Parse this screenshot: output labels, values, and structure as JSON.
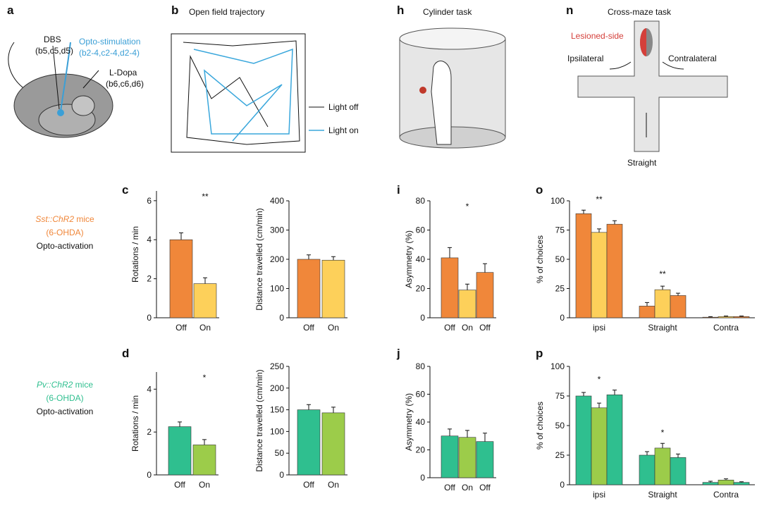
{
  "panels": {
    "a": {
      "label": "a",
      "dbs": "DBS",
      "dbs_sub": "(b5,c5,d5)",
      "opto": "Opto-stimulation",
      "opto_sub": "(b2-4,c2-4,d2-4)",
      "ldopa": "L-Dopa",
      "ldopa_sub": "(b6,c6,d6)"
    },
    "b": {
      "label": "b",
      "title": "Open field trajectory",
      "light_off": "Light off",
      "light_on": "Light on"
    },
    "h": {
      "label": "h",
      "title": "Cylinder task"
    },
    "n": {
      "label": "n",
      "title": "Cross-maze task",
      "lesioned": "Lesioned-side",
      "ipsi": "Ipsilateral",
      "contra": "Contralateral",
      "straight": "Straight"
    }
  },
  "rows": [
    {
      "line1_italic": "Sst::ChR2",
      "line1_rest": "mice",
      "line2": "(6-OHDA)",
      "line3": "Opto-activation",
      "color": "#f0873a"
    },
    {
      "line1_italic": "Pv::ChR2",
      "line1_rest": "mice",
      "line2": "(6-OHDA)",
      "line3": "Opto-activation",
      "color": "#2fbf8f"
    }
  ],
  "chart_data": [
    {
      "type": "bar",
      "label": "c",
      "ylabel": "Rotations / min",
      "categories": [
        "Off",
        "On"
      ],
      "values": [
        4.0,
        1.75
      ],
      "errors": [
        0.35,
        0.3
      ],
      "colors": [
        "#f0873a",
        "#fdd05a"
      ],
      "ylim": [
        0,
        6.5
      ],
      "yticks": [
        0,
        2,
        4,
        6
      ],
      "annotation": "**"
    },
    {
      "type": "bar",
      "ylabel": "Distance travelled (cm/min)",
      "categories": [
        "Off",
        "On"
      ],
      "values": [
        200,
        197
      ],
      "errors": [
        15,
        12
      ],
      "colors": [
        "#f0873a",
        "#fdd05a"
      ],
      "ylim": [
        0,
        400
      ],
      "yticks": [
        0,
        100,
        200,
        300,
        400
      ]
    },
    {
      "type": "bar",
      "label": "d",
      "ylabel": "Rotations / min",
      "categories": [
        "Off",
        "On"
      ],
      "values": [
        2.25,
        1.4
      ],
      "errors": [
        0.22,
        0.25
      ],
      "colors": [
        "#2fbf8f",
        "#9ccc4a"
      ],
      "ylim": [
        0,
        4.8
      ],
      "yticks": [
        0,
        2,
        4
      ],
      "annotation": "*"
    },
    {
      "type": "bar",
      "ylabel": "Distance travelled (cm/min)",
      "categories": [
        "Off",
        "On"
      ],
      "values": [
        150,
        143
      ],
      "errors": [
        12,
        13
      ],
      "colors": [
        "#2fbf8f",
        "#9ccc4a"
      ],
      "ylim": [
        0,
        250
      ],
      "yticks": [
        0,
        50,
        100,
        150,
        200,
        250
      ]
    },
    {
      "type": "bar",
      "label": "i",
      "ylabel": "Asymmetry (%)",
      "categories": [
        "Off",
        "On",
        "Off"
      ],
      "values": [
        41,
        19,
        31
      ],
      "errors": [
        7,
        4,
        6
      ],
      "colors": [
        "#f0873a",
        "#fdd05a",
        "#f0873a"
      ],
      "ylim": [
        0,
        80
      ],
      "yticks": [
        0,
        20,
        40,
        60,
        80
      ],
      "annotation": "*"
    },
    {
      "type": "bar",
      "label": "j",
      "ylabel": "Asymmetry (%)",
      "categories": [
        "Off",
        "On",
        "Off"
      ],
      "values": [
        30,
        29,
        26
      ],
      "errors": [
        5,
        5,
        6
      ],
      "colors": [
        "#2fbf8f",
        "#9ccc4a",
        "#2fbf8f"
      ],
      "ylim": [
        0,
        80
      ],
      "yticks": [
        0,
        20,
        40,
        60,
        80
      ]
    },
    {
      "type": "grouped",
      "label": "o",
      "ylabel": "% of choices",
      "categories": [
        "ipsi",
        "Straight",
        "Contra"
      ],
      "series": [
        {
          "color": "#f0873a",
          "values": [
            89,
            10,
            0.5
          ],
          "errors": [
            3,
            3,
            0.5
          ]
        },
        {
          "color": "#fdd05a",
          "values": [
            73,
            24,
            1
          ],
          "errors": [
            3,
            3,
            0.5
          ]
        },
        {
          "color": "#f0873a",
          "values": [
            80,
            19,
            1
          ],
          "errors": [
            3,
            2,
            0.5
          ]
        }
      ],
      "ylim": [
        0,
        100
      ],
      "yticks": [
        0,
        25,
        50,
        75,
        100
      ],
      "annotations": [
        "**",
        "**"
      ]
    },
    {
      "type": "grouped",
      "label": "p",
      "ylabel": "% of choices",
      "categories": [
        "ipsi",
        "Straight",
        "Contra"
      ],
      "series": [
        {
          "color": "#2fbf8f",
          "values": [
            75,
            25,
            2
          ],
          "errors": [
            3,
            3,
            1
          ]
        },
        {
          "color": "#9ccc4a",
          "values": [
            65,
            31,
            4
          ],
          "errors": [
            4,
            4,
            1
          ]
        },
        {
          "color": "#2fbf8f",
          "values": [
            76,
            23,
            2
          ],
          "errors": [
            4,
            3,
            0.5
          ]
        }
      ],
      "ylim": [
        0,
        100
      ],
      "yticks": [
        0,
        25,
        50,
        75,
        100
      ],
      "annotations": [
        "*",
        "*"
      ]
    }
  ]
}
